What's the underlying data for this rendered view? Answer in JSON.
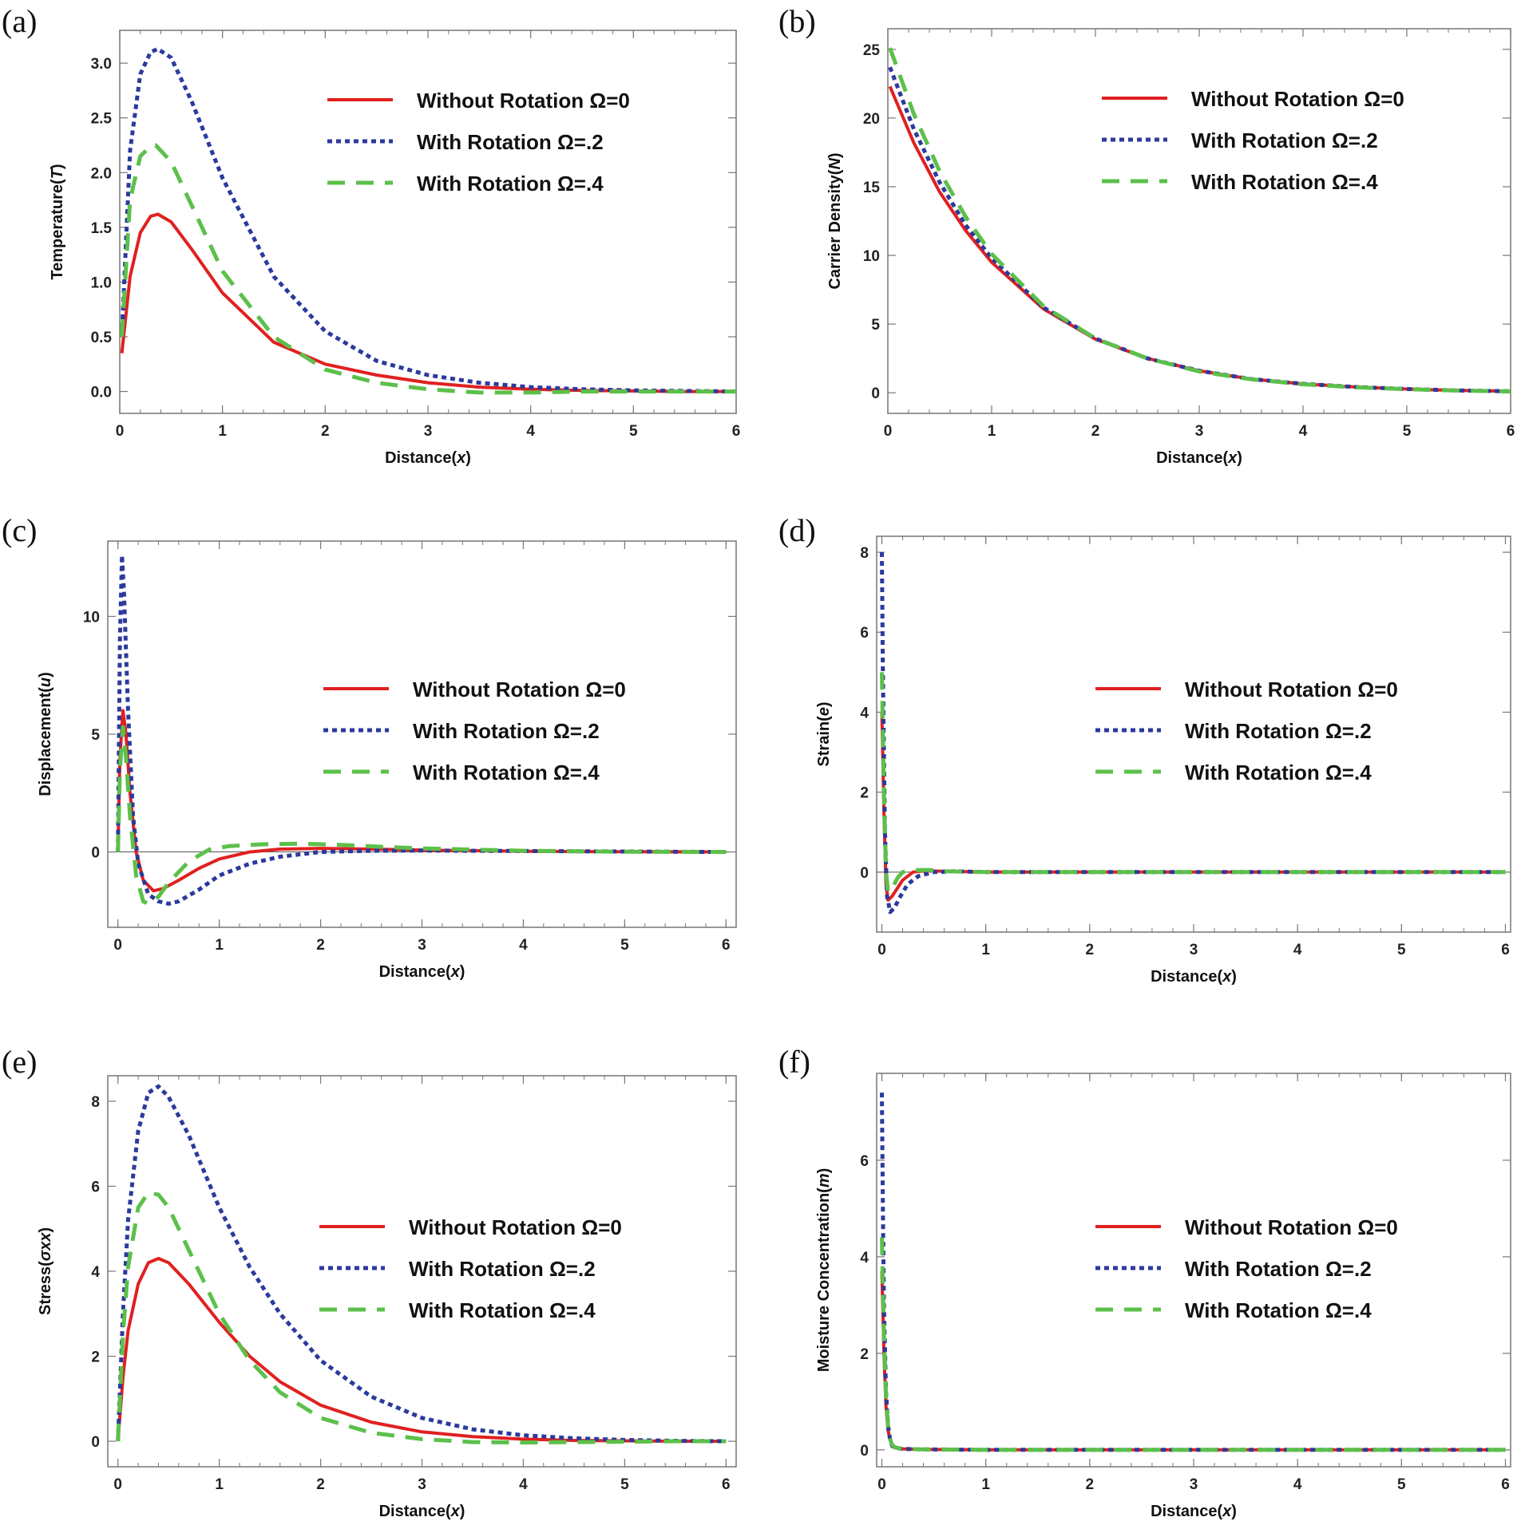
{
  "colors": {
    "without": "#e02020",
    "rot2": "#2b3a9c",
    "rot4": "#5cc04a",
    "frame": "#777777",
    "zero_line": "#555555"
  },
  "legend": [
    {
      "label": "Without Rotation Ω=0",
      "style": "solid",
      "color": "#e02020"
    },
    {
      "label": "With Rotation Ω=.2",
      "style": "dotted",
      "color": "#2b3a9c"
    },
    {
      "label": "With Rotation Ω=.4",
      "style": "dashed",
      "color": "#5cc04a"
    }
  ],
  "chart_data": [
    {
      "panel": "(a)",
      "type": "line",
      "xlabel": "Distance(x)",
      "ylabel": "Temperature(T)",
      "xlim": [
        0,
        6
      ],
      "ylim": [
        -0.2,
        3.3
      ],
      "xticks": [
        0,
        1,
        2,
        3,
        4,
        5,
        6
      ],
      "yticks": [
        0.0,
        0.5,
        1.0,
        1.5,
        2.0,
        2.5,
        3.0
      ],
      "ytick_labels": [
        "0.0",
        "0.5",
        "1.0",
        "1.5",
        "2.0",
        "2.5",
        "3.0"
      ],
      "legend_position": "top-right",
      "series": [
        {
          "name": "Without Rotation Ω=0",
          "x": [
            0.02,
            0.1,
            0.2,
            0.3,
            0.37,
            0.5,
            0.7,
            1.0,
            1.5,
            2.0,
            2.5,
            3.0,
            3.5,
            4.0,
            4.5,
            5.0,
            5.5,
            6.0
          ],
          "y": [
            0.35,
            1.05,
            1.45,
            1.6,
            1.62,
            1.55,
            1.3,
            0.9,
            0.45,
            0.25,
            0.15,
            0.08,
            0.04,
            0.02,
            0.01,
            0.005,
            0.0,
            0.0
          ]
        },
        {
          "name": "With Rotation Ω=.2",
          "x": [
            0.02,
            0.1,
            0.2,
            0.3,
            0.37,
            0.5,
            0.7,
            1.0,
            1.5,
            2.0,
            2.5,
            3.0,
            3.5,
            4.0,
            4.5,
            5.0,
            5.5,
            6.0
          ],
          "y": [
            0.5,
            2.2,
            2.9,
            3.1,
            3.13,
            3.05,
            2.65,
            1.95,
            1.05,
            0.55,
            0.28,
            0.15,
            0.08,
            0.04,
            0.02,
            0.01,
            0.005,
            0.0
          ]
        },
        {
          "name": "With Rotation Ω=.4",
          "x": [
            0.02,
            0.1,
            0.2,
            0.3,
            0.35,
            0.5,
            0.7,
            1.0,
            1.5,
            2.0,
            2.5,
            3.0,
            3.5,
            4.0,
            4.5,
            5.0,
            5.5,
            6.0
          ],
          "y": [
            0.5,
            1.75,
            2.15,
            2.24,
            2.25,
            2.1,
            1.7,
            1.1,
            0.5,
            0.2,
            0.08,
            0.02,
            -0.01,
            -0.01,
            0.0,
            0.0,
            0.0,
            0.0
          ]
        }
      ]
    },
    {
      "panel": "(b)",
      "type": "line",
      "xlabel": "Distance(x)",
      "ylabel": "Carrier Density(N)",
      "xlim": [
        0,
        6
      ],
      "ylim": [
        -1.5,
        26.5
      ],
      "xticks": [
        0,
        1,
        2,
        3,
        4,
        5,
        6
      ],
      "yticks": [
        0,
        5,
        10,
        15,
        20,
        25
      ],
      "ytick_labels": [
        "0",
        "5",
        "10",
        "15",
        "20",
        "25"
      ],
      "legend_position": "top-right",
      "series": [
        {
          "name": "Without Rotation Ω=0",
          "x": [
            0.02,
            0.25,
            0.5,
            0.75,
            1.0,
            1.5,
            2.0,
            2.5,
            3.0,
            3.5,
            4.0,
            4.5,
            5.0,
            5.5,
            6.0
          ],
          "y": [
            22.3,
            18.2,
            14.6,
            11.8,
            9.5,
            6.1,
            3.9,
            2.5,
            1.6,
            1.0,
            0.65,
            0.42,
            0.27,
            0.17,
            0.11
          ]
        },
        {
          "name": "With Rotation Ω=.2",
          "x": [
            0.02,
            0.25,
            0.5,
            0.75,
            1.0,
            1.5,
            2.0,
            2.5,
            3.0,
            3.5,
            4.0,
            4.5,
            5.0,
            5.5,
            6.0
          ],
          "y": [
            23.7,
            19.2,
            15.3,
            12.2,
            9.8,
            6.2,
            3.95,
            2.5,
            1.6,
            1.0,
            0.65,
            0.42,
            0.27,
            0.17,
            0.11
          ]
        },
        {
          "name": "With Rotation Ω=.4",
          "x": [
            0.02,
            0.25,
            0.5,
            0.75,
            1.0,
            1.5,
            2.0,
            2.5,
            3.0,
            3.5,
            4.0,
            4.5,
            5.0,
            5.5,
            6.0
          ],
          "y": [
            25.1,
            20.3,
            16.1,
            12.8,
            10.1,
            6.3,
            3.95,
            2.5,
            1.55,
            0.98,
            0.62,
            0.4,
            0.26,
            0.16,
            0.1
          ]
        }
      ]
    },
    {
      "panel": "(c)",
      "type": "line",
      "xlabel": "Distance(x)",
      "ylabel": "Displacement(u)",
      "xlim": [
        -0.1,
        6.1
      ],
      "ylim": [
        -3.2,
        13.2
      ],
      "xticks": [
        0,
        1,
        2,
        3,
        4,
        5,
        6
      ],
      "yticks": [
        0,
        5,
        10
      ],
      "ytick_labels": [
        "0",
        "5",
        "10"
      ],
      "zero_line": true,
      "legend_position": "center-right",
      "series": [
        {
          "name": "Without Rotation Ω=0",
          "x": [
            0.0,
            0.02,
            0.05,
            0.08,
            0.12,
            0.18,
            0.25,
            0.35,
            0.45,
            0.6,
            0.8,
            1.0,
            1.3,
            1.6,
            2.0,
            2.5,
            3.0,
            4.0,
            5.0,
            6.0
          ],
          "y": [
            0.0,
            4.0,
            6.0,
            5.0,
            2.5,
            0.0,
            -1.2,
            -1.65,
            -1.55,
            -1.2,
            -0.7,
            -0.3,
            0.0,
            0.12,
            0.15,
            0.12,
            0.08,
            0.03,
            0.01,
            0.0
          ]
        },
        {
          "name": "With Rotation Ω=.2",
          "x": [
            0.0,
            0.02,
            0.04,
            0.06,
            0.1,
            0.15,
            0.2,
            0.3,
            0.4,
            0.5,
            0.6,
            0.8,
            1.0,
            1.3,
            1.6,
            2.0,
            2.5,
            3.0,
            4.0,
            5.0,
            6.0
          ],
          "y": [
            0.0,
            9.0,
            12.6,
            11.0,
            6.0,
            1.5,
            -0.5,
            -1.8,
            -2.1,
            -2.2,
            -2.1,
            -1.6,
            -1.0,
            -0.5,
            -0.2,
            0.0,
            0.05,
            0.06,
            0.04,
            0.02,
            0.0
          ]
        },
        {
          "name": "With Rotation Ω=.4",
          "x": [
            0.0,
            0.02,
            0.05,
            0.08,
            0.12,
            0.18,
            0.25,
            0.3,
            0.4,
            0.5,
            0.7,
            0.9,
            1.1,
            1.4,
            1.8,
            2.2,
            2.6,
            3.0,
            4.0,
            5.0,
            6.0
          ],
          "y": [
            0.0,
            3.5,
            5.3,
            4.0,
            1.5,
            -1.0,
            -2.1,
            -2.2,
            -1.9,
            -1.3,
            -0.4,
            0.1,
            0.25,
            0.32,
            0.35,
            0.3,
            0.22,
            0.15,
            0.05,
            0.01,
            0.0
          ]
        }
      ]
    },
    {
      "panel": "(d)",
      "type": "line",
      "xlabel": "Distance(x)",
      "ylabel": "Strain(e)",
      "xlim": [
        -0.05,
        6.05
      ],
      "ylim": [
        -1.5,
        8.4
      ],
      "xticks": [
        0,
        1,
        2,
        3,
        4,
        5,
        6
      ],
      "yticks": [
        0,
        2,
        4,
        6,
        8
      ],
      "ytick_labels": [
        "0",
        "2",
        "4",
        "6",
        "8"
      ],
      "zero_line": true,
      "legend_position": "center-right",
      "series": [
        {
          "name": "Without Rotation Ω=0",
          "x": [
            0.0,
            0.02,
            0.04,
            0.06,
            0.1,
            0.15,
            0.2,
            0.3,
            0.4,
            0.6,
            1.0,
            2.0,
            3.0,
            4.0,
            5.0,
            6.0
          ],
          "y": [
            4.0,
            1.5,
            -0.3,
            -0.7,
            -0.6,
            -0.4,
            -0.2,
            0.0,
            0.03,
            0.02,
            0.0,
            0.0,
            0.0,
            0.0,
            0.0,
            0.0
          ]
        },
        {
          "name": "With Rotation Ω=.2",
          "x": [
            0.0,
            0.01,
            0.03,
            0.05,
            0.08,
            0.12,
            0.18,
            0.25,
            0.35,
            0.5,
            0.7,
            1.0,
            2.0,
            3.0,
            4.0,
            5.0,
            6.0
          ],
          "y": [
            8.0,
            5.0,
            1.0,
            -0.6,
            -1.0,
            -0.9,
            -0.6,
            -0.3,
            -0.1,
            0.0,
            0.02,
            0.0,
            0.0,
            0.0,
            0.0,
            0.0,
            0.0
          ]
        },
        {
          "name": "With Rotation Ω=.4",
          "x": [
            0.0,
            0.02,
            0.04,
            0.06,
            0.1,
            0.15,
            0.2,
            0.3,
            0.45,
            0.6,
            1.0,
            2.0,
            3.0,
            4.0,
            5.0,
            6.0
          ],
          "y": [
            5.0,
            2.0,
            0.0,
            -0.5,
            -0.4,
            -0.15,
            0.0,
            0.05,
            0.05,
            0.02,
            0.0,
            0.0,
            0.0,
            0.0,
            0.0,
            0.0
          ]
        }
      ]
    },
    {
      "panel": "(e)",
      "type": "line",
      "xlabel": "Distance(x)",
      "ylabel": "Stress(σxx)",
      "xlim": [
        -0.1,
        6.1
      ],
      "ylim": [
        -0.6,
        8.6
      ],
      "xticks": [
        0,
        1,
        2,
        3,
        4,
        5,
        6
      ],
      "yticks": [
        0,
        2,
        4,
        6,
        8
      ],
      "ytick_labels": [
        "0",
        "2",
        "4",
        "6",
        "8"
      ],
      "legend_position": "center-right",
      "series": [
        {
          "name": "Without Rotation Ω=0",
          "x": [
            0.0,
            0.05,
            0.1,
            0.2,
            0.3,
            0.4,
            0.5,
            0.7,
            1.0,
            1.3,
            1.6,
            2.0,
            2.5,
            3.0,
            3.5,
            4.0,
            4.5,
            5.0,
            5.5,
            6.0
          ],
          "y": [
            0.0,
            1.5,
            2.6,
            3.7,
            4.2,
            4.3,
            4.2,
            3.7,
            2.8,
            2.0,
            1.4,
            0.85,
            0.45,
            0.22,
            0.11,
            0.05,
            0.02,
            0.01,
            0.0,
            0.0
          ]
        },
        {
          "name": "With Rotation Ω=.2",
          "x": [
            0.0,
            0.05,
            0.1,
            0.2,
            0.3,
            0.4,
            0.5,
            0.7,
            1.0,
            1.3,
            1.6,
            2.0,
            2.5,
            3.0,
            3.5,
            4.0,
            4.5,
            5.0,
            5.5,
            6.0
          ],
          "y": [
            0.0,
            3.0,
            5.2,
            7.3,
            8.2,
            8.35,
            8.1,
            7.2,
            5.5,
            4.1,
            3.0,
            1.9,
            1.05,
            0.55,
            0.28,
            0.14,
            0.07,
            0.03,
            0.01,
            0.0
          ]
        },
        {
          "name": "With Rotation Ω=.4",
          "x": [
            0.0,
            0.05,
            0.1,
            0.2,
            0.3,
            0.4,
            0.5,
            0.7,
            1.0,
            1.3,
            1.6,
            2.0,
            2.5,
            3.0,
            3.5,
            4.0,
            4.5,
            5.0,
            5.5,
            6.0
          ],
          "y": [
            0.0,
            2.5,
            4.1,
            5.5,
            5.85,
            5.8,
            5.5,
            4.5,
            3.0,
            1.9,
            1.15,
            0.55,
            0.2,
            0.05,
            -0.02,
            -0.03,
            -0.02,
            -0.01,
            0.0,
            0.0
          ]
        }
      ]
    },
    {
      "panel": "(f)",
      "type": "line",
      "xlabel": "Distance(x)",
      "ylabel": "Moisture Concentration(m)",
      "xlim": [
        -0.05,
        6.05
      ],
      "ylim": [
        -0.35,
        7.8
      ],
      "xticks": [
        0,
        1,
        2,
        3,
        4,
        5,
        6
      ],
      "yticks": [
        0,
        2,
        4,
        6
      ],
      "ytick_labels": [
        "0",
        "2",
        "4",
        "6"
      ],
      "legend_position": "center-right",
      "series": [
        {
          "name": "Without Rotation Ω=0",
          "x": [
            0.0,
            0.02,
            0.04,
            0.06,
            0.08,
            0.1,
            0.13,
            0.2,
            0.4,
            1.0,
            2.0,
            3.0,
            4.0,
            5.0,
            6.0
          ],
          "y": [
            3.7,
            2.0,
            0.9,
            0.4,
            0.2,
            0.08,
            0.04,
            0.02,
            0.01,
            0.0,
            0.0,
            0.0,
            0.0,
            0.0,
            0.0
          ]
        },
        {
          "name": "With Rotation Ω=.2",
          "x": [
            0.0,
            0.01,
            0.02,
            0.04,
            0.06,
            0.08,
            0.1,
            0.13,
            0.2,
            0.4,
            1.0,
            2.0,
            3.0,
            4.0,
            5.0,
            6.0
          ],
          "y": [
            7.4,
            5.0,
            3.0,
            1.2,
            0.5,
            0.2,
            0.08,
            0.04,
            0.02,
            0.01,
            0.0,
            0.0,
            0.0,
            0.0,
            0.0,
            0.0
          ]
        },
        {
          "name": "With Rotation Ω=.4",
          "x": [
            0.0,
            0.02,
            0.04,
            0.06,
            0.08,
            0.1,
            0.13,
            0.2,
            0.4,
            1.0,
            2.0,
            3.0,
            4.0,
            5.0,
            6.0
          ],
          "y": [
            4.4,
            2.4,
            1.1,
            0.5,
            0.22,
            0.1,
            0.05,
            0.02,
            0.01,
            0.0,
            0.0,
            0.0,
            0.0,
            0.0,
            0.0
          ]
        }
      ]
    }
  ]
}
